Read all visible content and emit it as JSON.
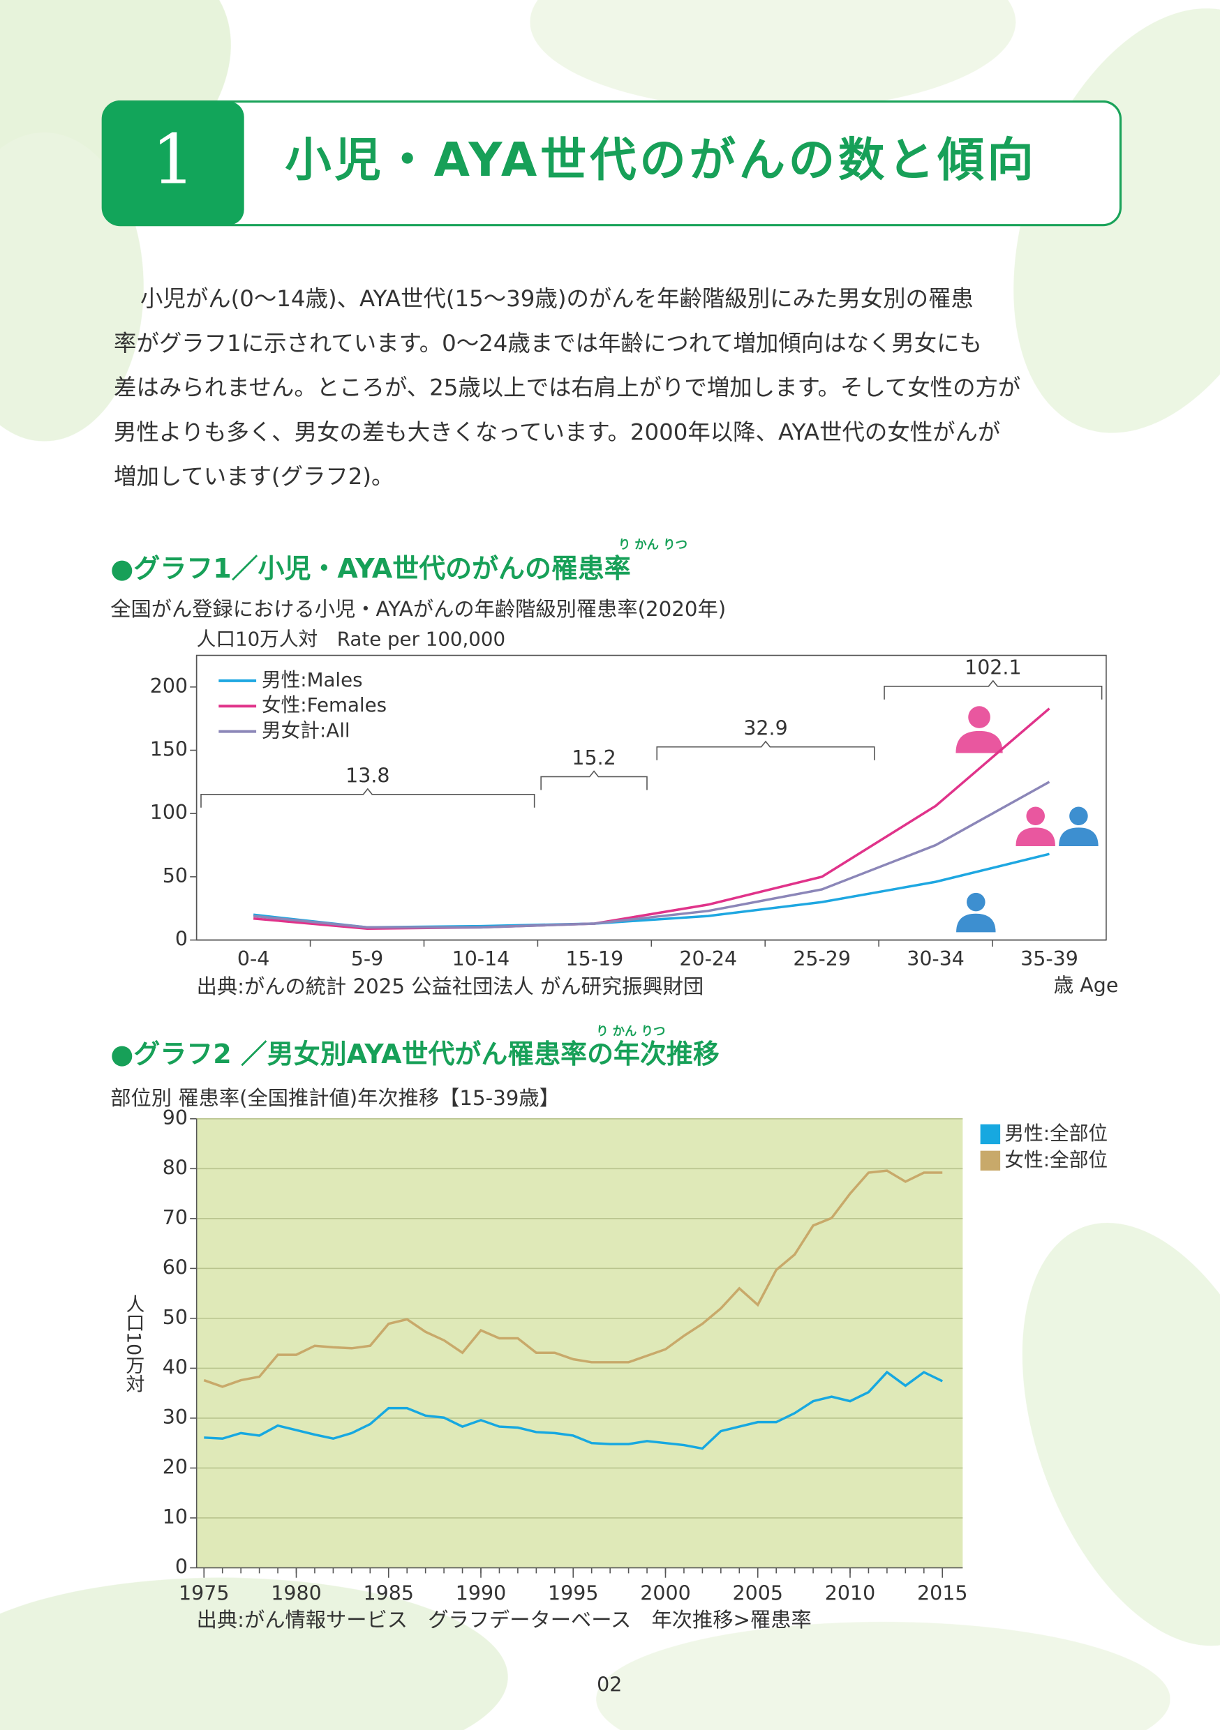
{
  "header": {
    "number": "1",
    "title": "小児・AYA世代のがんの数と傾向"
  },
  "body": {
    "lines": [
      "小児がん(0〜14歳)、AYA世代(15〜39歳)のがんを年齢階級別にみた男女別の罹患",
      "率がグラフ1に示されています。0〜24歳までは年齢につれて増加傾向はなく男女にも",
      "差はみられません。ところが、25歳以上では右肩上がりで増加します。そして女性の方が",
      "男性よりも多く、男女の差も大きくなっています。2000年以降、AYA世代の女性がんが",
      "増加しています(グラフ2)。"
    ]
  },
  "chart_data": [
    {
      "type": "line",
      "title": "●グラフ1／小児・AYA世代のがんの罹患率",
      "ruby": "り かん りつ",
      "subtitle": "全国がん登録における小児・AYAがんの年齢階級別罹患率(2020年)",
      "y_label": "人口10万人対　Rate per 100,000",
      "x_label": "歳 Age",
      "source": "出典:がんの統計 2025 公益社団法人 がん研究振興財団",
      "categories": [
        "0-4",
        "5-9",
        "10-14",
        "15-19",
        "20-24",
        "25-29",
        "30-34",
        "35-39"
      ],
      "series": [
        {
          "name": "男性:Males",
          "color": "#1ea7e1",
          "values": [
            20,
            10,
            11,
            13,
            19,
            30,
            46,
            68
          ]
        },
        {
          "name": "女性:Females",
          "color": "#e0338a",
          "values": [
            17,
            9,
            10,
            13,
            28,
            50,
            106,
            183
          ]
        },
        {
          "name": "男女計:All",
          "color": "#8b86b8",
          "values": [
            19,
            10,
            10,
            13,
            23,
            40,
            75,
            125
          ]
        }
      ],
      "annotations": [
        "13.8",
        "15.2",
        "32.9",
        "102.1"
      ],
      "ylim": [
        0,
        225
      ],
      "yticks": [
        0,
        50,
        100,
        150,
        200
      ],
      "grid": false,
      "legend": "top-left"
    },
    {
      "type": "line",
      "title": "●グラフ2 ／男女別AYA世代がん罹患率の年次推移",
      "ruby": "り かん りつ",
      "subtitle": "部位別 罹患率(全国推計値)年次推移【15-39歳】",
      "y_label": "人口10万対",
      "source": "出典:がん情報サービス　グラフデーターベース　年次推移>罹患率",
      "x": [
        1975,
        1976,
        1977,
        1978,
        1979,
        1980,
        1981,
        1982,
        1983,
        1984,
        1985,
        1986,
        1987,
        1988,
        1989,
        1990,
        1991,
        1992,
        1993,
        1994,
        1995,
        1996,
        1997,
        1998,
        1999,
        2000,
        2001,
        2002,
        2003,
        2004,
        2005,
        2006,
        2007,
        2008,
        2009,
        2010,
        2011,
        2012,
        2013,
        2014,
        2015
      ],
      "series": [
        {
          "name": "男性:全部位",
          "color": "#17a8e0",
          "values": [
            26.1,
            25.9,
            27,
            26.5,
            28.5,
            27.6,
            26.7,
            25.9,
            27,
            28.8,
            32,
            32,
            30.5,
            30.1,
            28.3,
            29.6,
            28.3,
            28.1,
            27.2,
            27,
            26.5,
            25,
            24.8,
            24.8,
            25.4,
            25,
            24.6,
            23.9,
            27.4,
            28.3,
            29.2,
            29.2,
            31,
            33.4,
            34.3,
            33.4,
            35.2,
            39.2,
            36.5,
            39.2,
            37.4
          ]
        },
        {
          "name": "女性:全部位",
          "color": "#c8a96a",
          "values": [
            37.6,
            36.3,
            37.6,
            38.3,
            42.7,
            42.7,
            44.5,
            44.2,
            44,
            44.5,
            48.9,
            49.8,
            47.3,
            45.6,
            43.1,
            47.6,
            46,
            46,
            43.1,
            43.1,
            41.8,
            41.2,
            41.2,
            41.2,
            42.5,
            43.8,
            46.5,
            48.9,
            52,
            56,
            52.7,
            59.7,
            62.8,
            68.6,
            70.1,
            75,
            79.2,
            79.6,
            77.4,
            79.2,
            79.2
          ]
        }
      ],
      "xlim": [
        1974.6,
        2016.1
      ],
      "xticks": [
        1975,
        1980,
        1985,
        1990,
        1995,
        2000,
        2005,
        2010,
        2015
      ],
      "ylim": [
        0,
        90
      ],
      "yticks": [
        0,
        10,
        20,
        30,
        40,
        50,
        60,
        70,
        80,
        90
      ],
      "grid": true,
      "plot_background": "#dfe9b8",
      "legend": "top-right"
    }
  ],
  "page_number": "02"
}
